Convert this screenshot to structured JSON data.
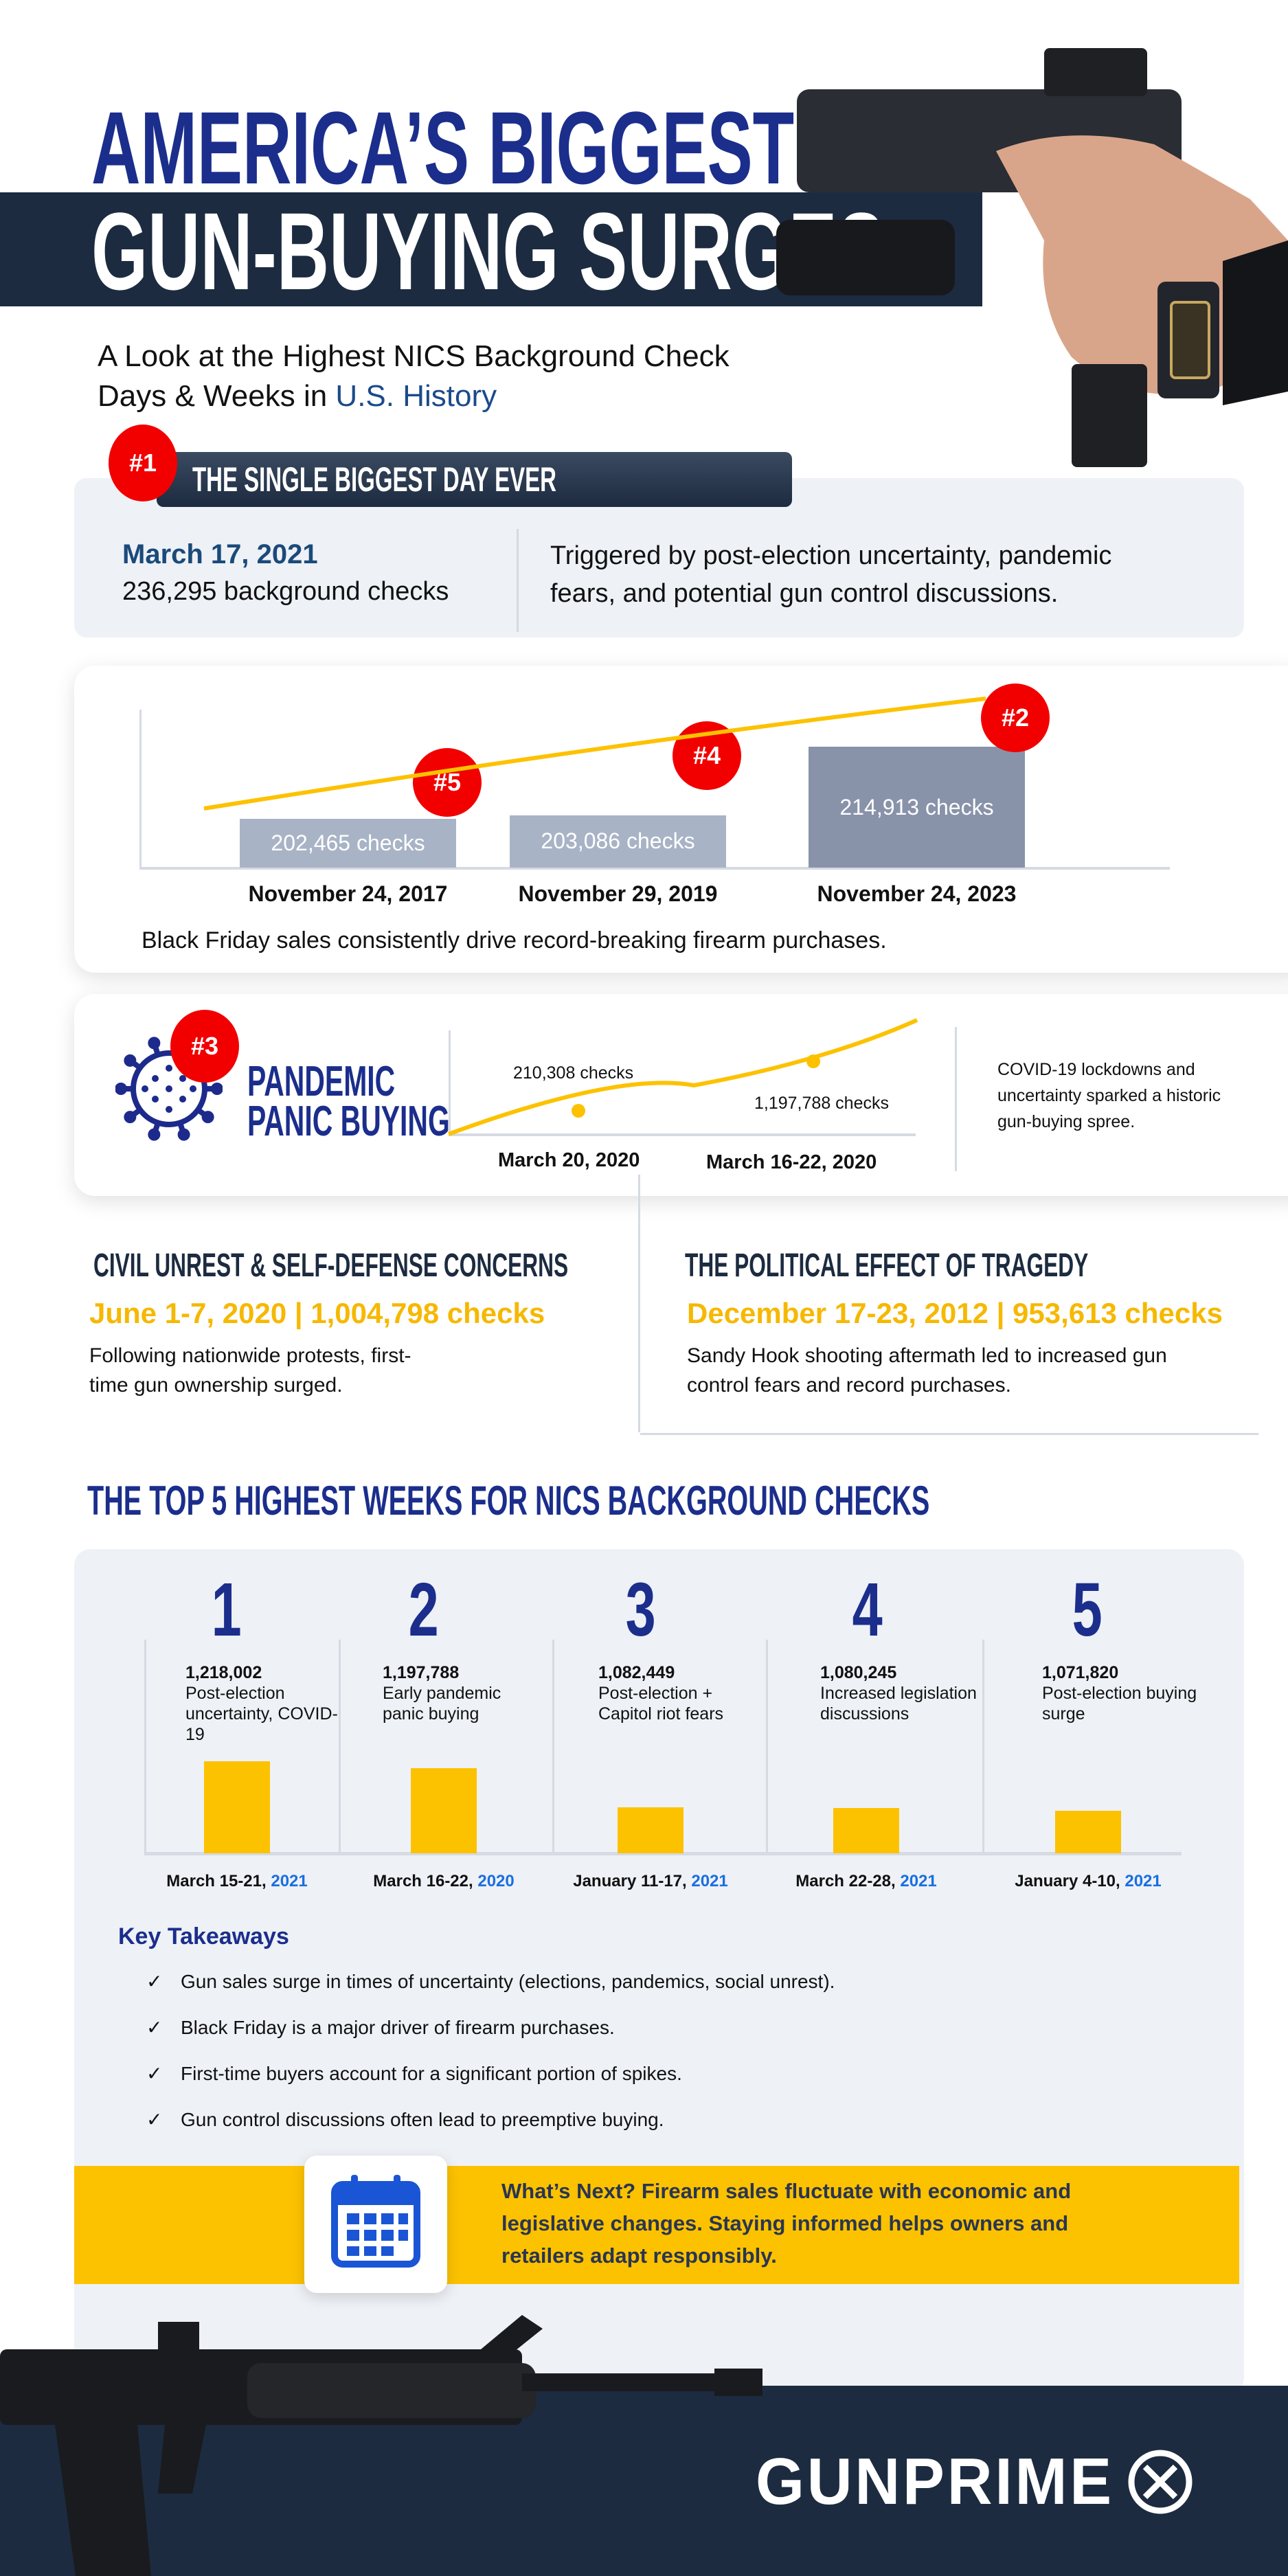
{
  "header": {
    "title_line1": "AMERICA’S BIGGEST",
    "title_line2": "GUN-BUYING SURGES",
    "subtitle_line1": "A Look at the Highest NICS Background Check",
    "subtitle_line2_prefix": "Days & Weeks in ",
    "subtitle_line2_highlight": "U.S. History"
  },
  "colors": {
    "navy": "#1b2e8c",
    "dark_band": "#1c2b40",
    "yellow": "#fcc200",
    "red_badge": "#f20000",
    "panel": "#eef1f6",
    "blue_year": "#1a6fe0"
  },
  "biggest_day": {
    "badge": "#1",
    "heading": "THE SINGLE BIGGEST DAY EVER",
    "date": "March 17, 2021",
    "checks": "236,295 background checks",
    "description_line1": "Triggered by post-election uncertainty, pandemic",
    "description_line2": "fears, and potential gun control discussions."
  },
  "black_friday": {
    "bars": [
      {
        "label": "202,465  checks",
        "value": 202465,
        "badge": "#5",
        "date": "November 24, 2017"
      },
      {
        "label": "203,086 checks",
        "value": 203086,
        "badge": "#4",
        "date": "November 29, 2019"
      },
      {
        "label": "214,913 checks",
        "value": 214913,
        "badge": "#2",
        "date": "November 24, 2023"
      }
    ],
    "caption": "Black Friday sales consistently drive record-breaking firearm purchases."
  },
  "pandemic": {
    "badge": "#3",
    "title_line1": "PANDEMIC",
    "title_line2": "PANIC BUYING",
    "icon": "virus-icon",
    "points": [
      {
        "label": "210,308 checks",
        "date": "March 20, 2020"
      },
      {
        "label": "1,197,788 checks",
        "date": "March 16-22, 2020"
      }
    ],
    "description_line1": "COVID-19 lockdowns and",
    "description_line2": "uncertainty sparked a historic",
    "description_line3": "gun-buying spree."
  },
  "civil_unrest": {
    "heading": "CIVIL UNREST & SELF-DEFENSE CONCERNS",
    "highlight": "June 1-7, 2020 | 1,004,798 checks",
    "text_line1": "Following nationwide protests, first-",
    "text_line2": "time gun ownership surged."
  },
  "tragedy": {
    "heading": "THE POLITICAL EFFECT OF TRAGEDY",
    "highlight": "December 17-23, 2012 | 953,613 checks",
    "text_line1": "Sandy Hook shooting aftermath led to increased gun",
    "text_line2": "control fears and record purchases."
  },
  "top5": {
    "heading": "THE TOP 5 HIGHEST WEEKS FOR NICS BACKGROUND CHECKS",
    "chart_data": {
      "type": "bar",
      "categories": [
        "March 15-21, 2021",
        "March 16-22, 2020",
        "January 11-17, 2021",
        "March 22-28, 2021",
        "January 4-10, 2021"
      ],
      "values": [
        1218002,
        1197788,
        1082449,
        1080245,
        1071820
      ]
    },
    "weeks": [
      {
        "rank": "1",
        "value": "1,218,002",
        "reason": "Post-election uncertainty, COVID-19",
        "date": "March 15-21, ",
        "year": "2021"
      },
      {
        "rank": "2",
        "value": "1,197,788",
        "reason": "Early pandemic panic buying",
        "date": "March 16-22, ",
        "year": "2020"
      },
      {
        "rank": "3",
        "value": "1,082,449",
        "reason": "Post-election + Capitol riot fears",
        "date": "January 11-17, ",
        "year": "2021"
      },
      {
        "rank": "4",
        "value": "1,080,245",
        "reason": "Increased legislation discussions",
        "date": "March 22-28, ",
        "year": "2021"
      },
      {
        "rank": "5",
        "value": "1,071,820",
        "reason": "Post-election buying surge",
        "date": "January 4-10, ",
        "year": "2021"
      }
    ]
  },
  "takeaways": {
    "heading": "Key Takeaways",
    "check": "✓",
    "items": [
      "Gun sales surge in times of uncertainty (elections, pandemics, social unrest).",
      "Black Friday is a major driver of firearm purchases.",
      "First-time buyers account for a significant portion of spikes.",
      "Gun control discussions often lead to preemptive buying."
    ]
  },
  "whats_next": {
    "icon": "calendar-icon",
    "line1": "What’s Next? Firearm sales fluctuate with economic and",
    "line2": "legislative changes. Staying informed helps owners and",
    "line3": "retailers adapt responsibly."
  },
  "footer": {
    "logo": "GUNPRIME"
  }
}
